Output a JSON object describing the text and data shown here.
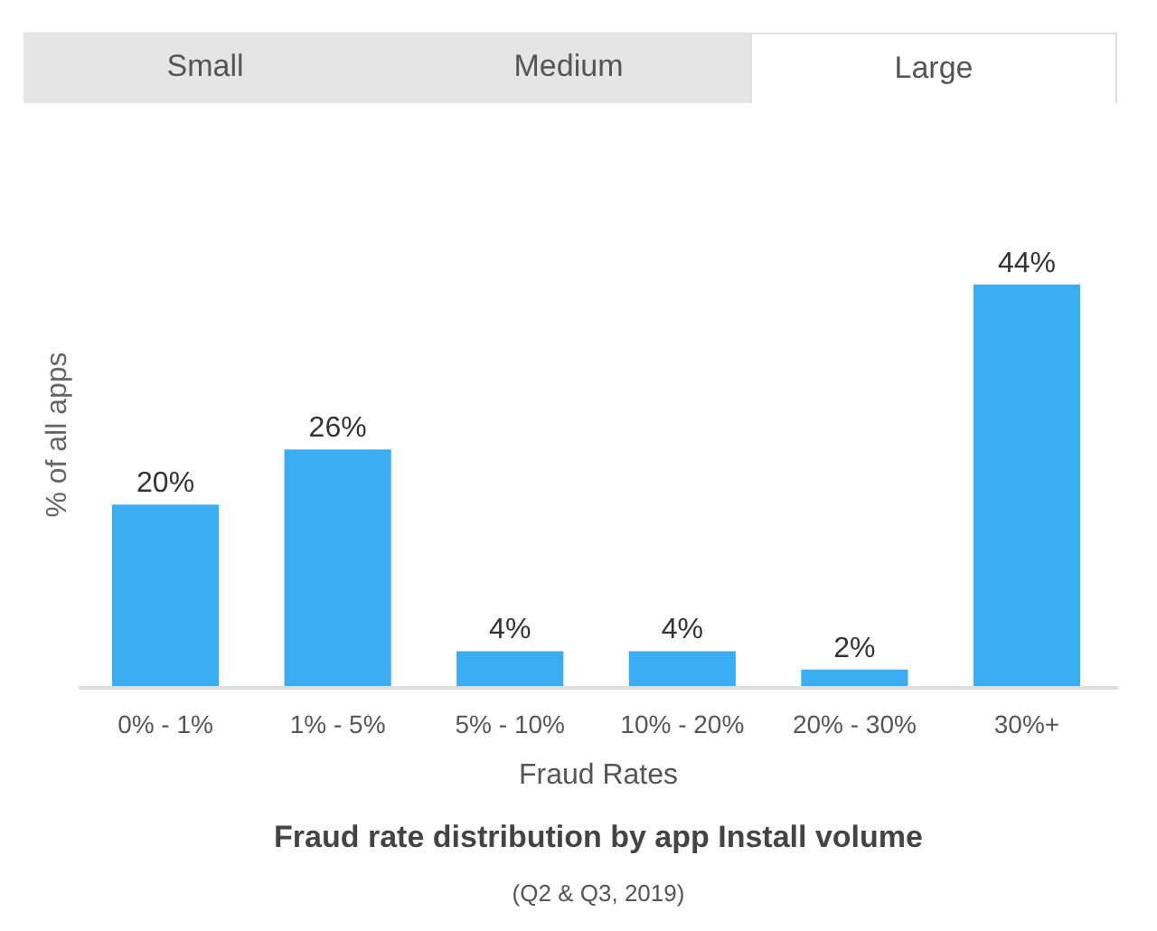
{
  "chart_data": {
    "type": "bar",
    "title": "Fraud rate distribution by app Install volume",
    "subtitle": "(Q2 & Q3, 2019)",
    "xlabel": "Fraud Rates",
    "ylabel": "% of all apps",
    "annotations": [
      "Small",
      "Medium",
      "Large"
    ],
    "categories": [
      "0% - 1%",
      "1% - 5%",
      "5% - 10%",
      "10% - 20%",
      "20% - 30%",
      "30%+"
    ],
    "values": [
      20,
      26,
      4,
      4,
      2,
      44
    ],
    "color": "#3badf3",
    "value_labels": [
      "20%",
      "26%",
      "4%",
      "4%",
      "2%",
      "44%"
    ],
    "tick_labels": "x"
  }
}
